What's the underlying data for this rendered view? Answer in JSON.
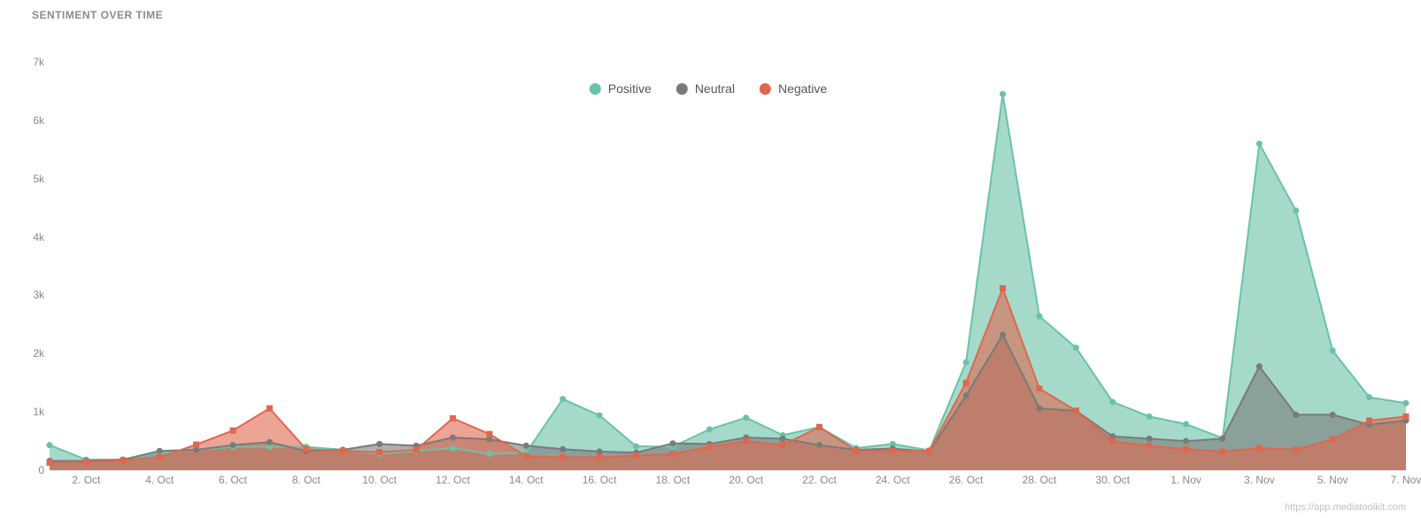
{
  "title": "SENTIMENT OVER TIME",
  "attribution": "https://app.mediatoolkit.com",
  "chart": {
    "type": "area",
    "background_color": "#ffffff",
    "grid_color": "#f0f0f0",
    "axis_color": "#888888",
    "font_size_axis": 12,
    "font_size_legend": 14,
    "ylim": [
      0,
      7000
    ],
    "ytick_step": 1000,
    "yticks": [
      "0",
      "1k",
      "2k",
      "3k",
      "4k",
      "5k",
      "6k",
      "7k"
    ],
    "marker_radius": 3.5,
    "line_width": 2,
    "area_opacity": 0.6,
    "x_labels": [
      "",
      "2. Oct",
      "",
      "4. Oct",
      "",
      "6. Oct",
      "",
      "8. Oct",
      "",
      "10. Oct",
      "",
      "12. Oct",
      "",
      "14. Oct",
      "",
      "16. Oct",
      "",
      "18. Oct",
      "",
      "20. Oct",
      "",
      "22. Oct",
      "",
      "24. Oct",
      "",
      "26. Oct",
      "",
      "28. Oct",
      "",
      "30. Oct",
      "",
      "1. Nov",
      "",
      "3. Nov",
      "",
      "5. Nov",
      "",
      "7. Nov"
    ],
    "legend": {
      "items": [
        {
          "label": "Positive",
          "color": "#69c2a8"
        },
        {
          "label": "Neutral",
          "color": "#7a7a7a"
        },
        {
          "label": "Negative",
          "color": "#df674f"
        }
      ]
    },
    "series": [
      {
        "name": "Positive",
        "color": "#69c2a8",
        "marker": "circle",
        "values": [
          430,
          180,
          180,
          300,
          350,
          400,
          400,
          400,
          350,
          280,
          330,
          380,
          280,
          300,
          1220,
          940,
          410,
          400,
          700,
          900,
          600,
          740,
          380,
          450,
          340,
          1850,
          6450,
          2640,
          2100,
          1170,
          920,
          790,
          550,
          5600,
          4450,
          2050,
          1250,
          1150
        ]
      },
      {
        "name": "Neutral",
        "color": "#7a7a7a",
        "marker": "circle",
        "values": [
          160,
          160,
          180,
          330,
          350,
          430,
          480,
          330,
          350,
          450,
          420,
          560,
          530,
          420,
          360,
          320,
          300,
          460,
          450,
          560,
          540,
          430,
          350,
          370,
          320,
          1280,
          2320,
          1060,
          1020,
          580,
          540,
          500,
          540,
          1780,
          950,
          950,
          780,
          850
        ]
      },
      {
        "name": "Negative",
        "color": "#df674f",
        "marker": "square",
        "values": [
          130,
          140,
          170,
          220,
          440,
          680,
          1060,
          360,
          330,
          310,
          350,
          890,
          620,
          240,
          220,
          220,
          250,
          280,
          400,
          500,
          430,
          740,
          330,
          330,
          330,
          1500,
          3120,
          1400,
          1020,
          500,
          420,
          360,
          320,
          380,
          350,
          530,
          850,
          920
        ]
      }
    ]
  }
}
